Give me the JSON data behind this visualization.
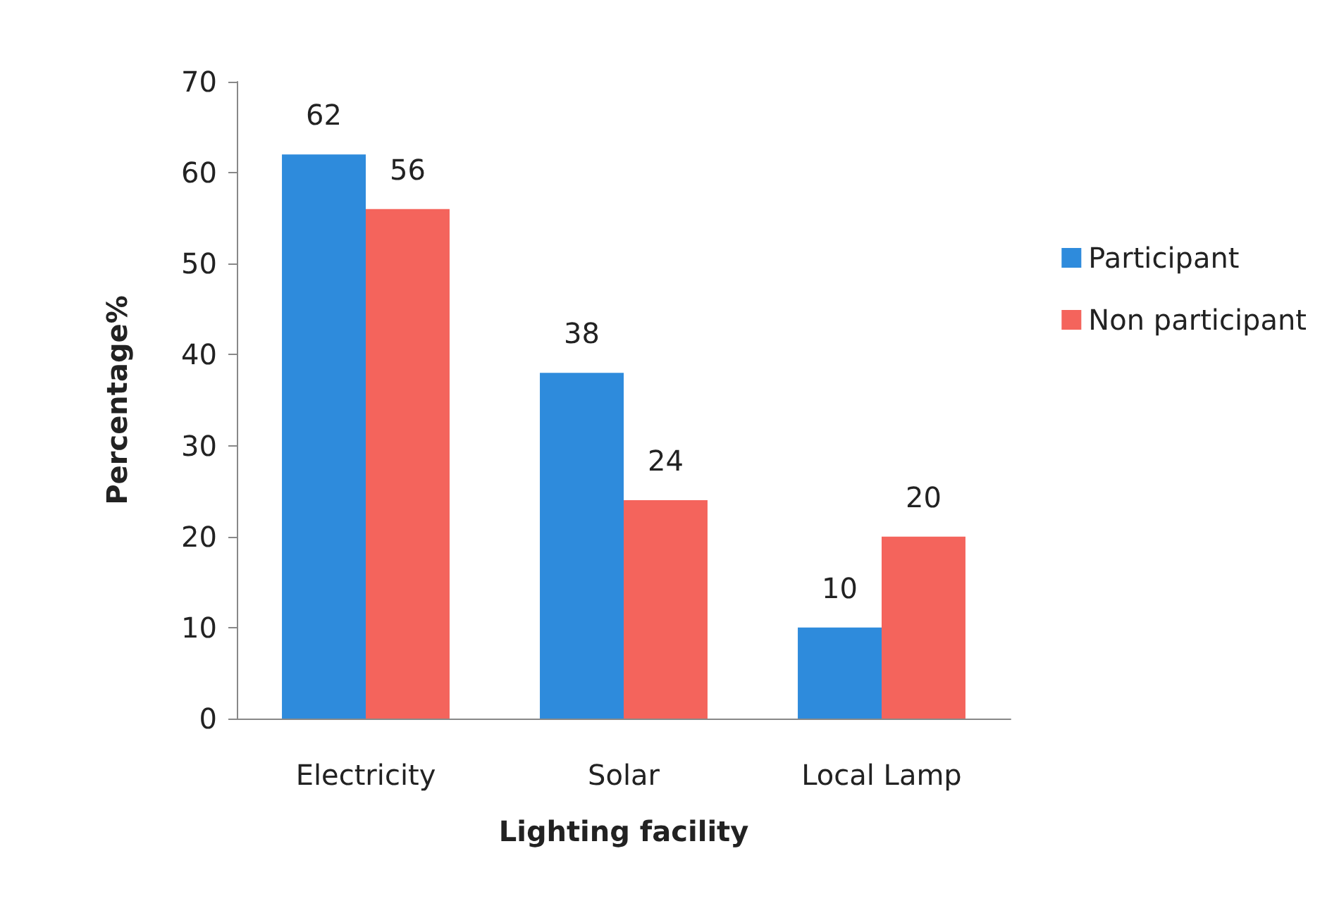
{
  "chart_data": {
    "type": "bar",
    "xlabel": "Lighting facility",
    "ylabel": "Percentage%",
    "categories": [
      "Electricity",
      "Solar",
      "Local Lamp"
    ],
    "series": [
      {
        "name": "Participant",
        "color": "#2e8bdc",
        "values": [
          62,
          38,
          10
        ]
      },
      {
        "name": "Non participant",
        "color": "#f4645c",
        "values": [
          56,
          24,
          20
        ]
      }
    ],
    "ylim": [
      0,
      70
    ],
    "yticks": [
      0,
      10,
      20,
      30,
      40,
      50,
      60,
      70
    ],
    "grid": false,
    "legend": "right",
    "data_labels": true
  }
}
